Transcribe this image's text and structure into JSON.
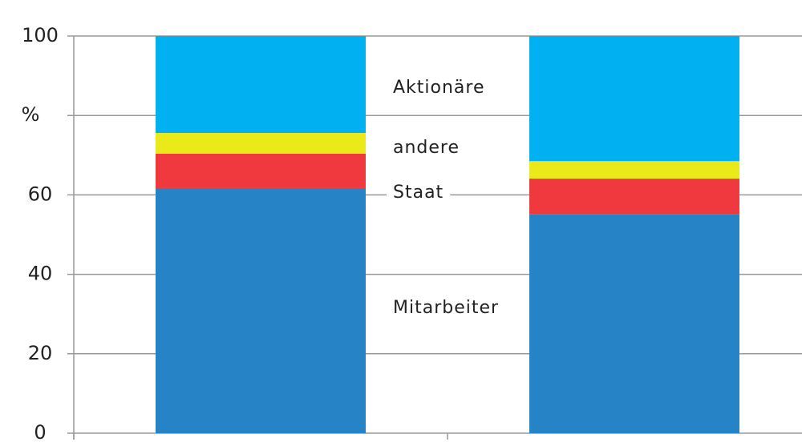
{
  "chart_data": {
    "type": "stacked_bar",
    "categories": [
      null,
      null
    ],
    "series": [
      {
        "name": "Mitarbeiter",
        "color": "#2683c6",
        "values": [
          61.7,
          55.2
        ]
      },
      {
        "name": "Staat",
        "color": "#f0393f",
        "values": [
          8.7,
          8.9
        ]
      },
      {
        "name": "andere",
        "color": "#eaea1a",
        "values": [
          5.2,
          4.4
        ]
      },
      {
        "name": "Aktionäre",
        "color": "#00b0f0",
        "values": [
          24.4,
          31.5
        ]
      }
    ],
    "ylim": [
      0,
      100
    ],
    "yticks": [
      0,
      20,
      40,
      60,
      {
        "value": 80,
        "label": "%"
      },
      100
    ],
    "grid": true
  }
}
